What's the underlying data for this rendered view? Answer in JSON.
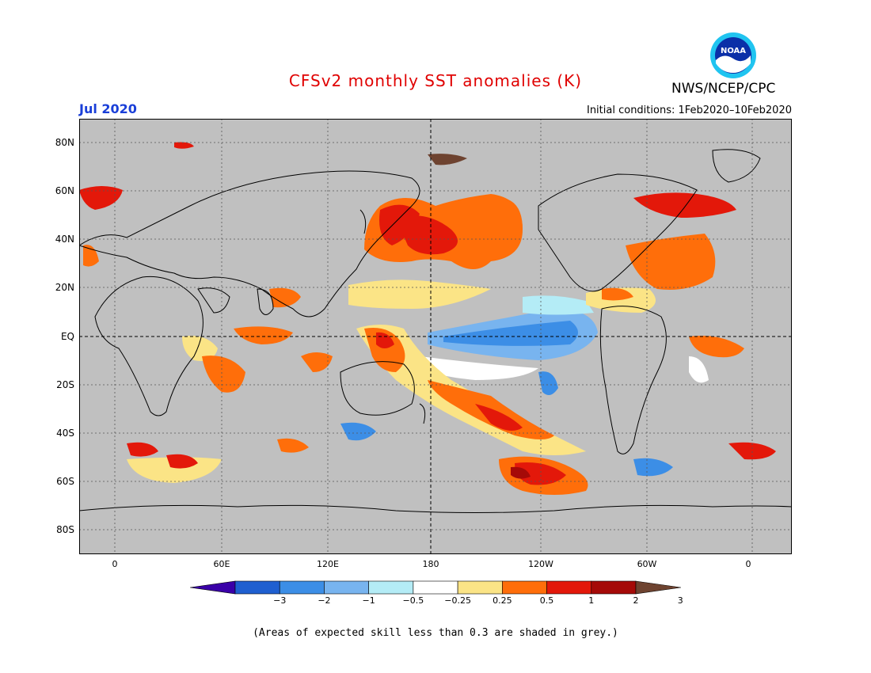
{
  "title": "CFSv2 monthly SST anomalies (K)",
  "organization": "NWS/NCEP/CPC",
  "logo_text": "NOAA",
  "forecast_month": "Jul 2020",
  "initial_conditions": "Initial conditions: 1Feb2020–10Feb2020",
  "lat_labels": [
    "80N",
    "60N",
    "40N",
    "20N",
    "EQ",
    "20S",
    "40S",
    "60S",
    "80S"
  ],
  "lon_labels": [
    "0",
    "60E",
    "120E",
    "180",
    "120W",
    "60W",
    "0"
  ],
  "colorbar": {
    "labels": [
      "−3",
      "−2",
      "−1",
      "−0.5",
      "−0.25",
      "0.25",
      "0.5",
      "1",
      "2",
      "3"
    ],
    "colors": [
      "#3a00a8",
      "#1f5fd0",
      "#3c8ee6",
      "#78b4ef",
      "#b4ecf6",
      "#ffffff",
      "#fbe486",
      "#ff6e0a",
      "#e3180a",
      "#a50a08",
      "#6e4330"
    ]
  },
  "land_color": "#c0c0c0",
  "footnote": "(Areas of expected skill less than 0.3 are shaded in grey.)"
}
